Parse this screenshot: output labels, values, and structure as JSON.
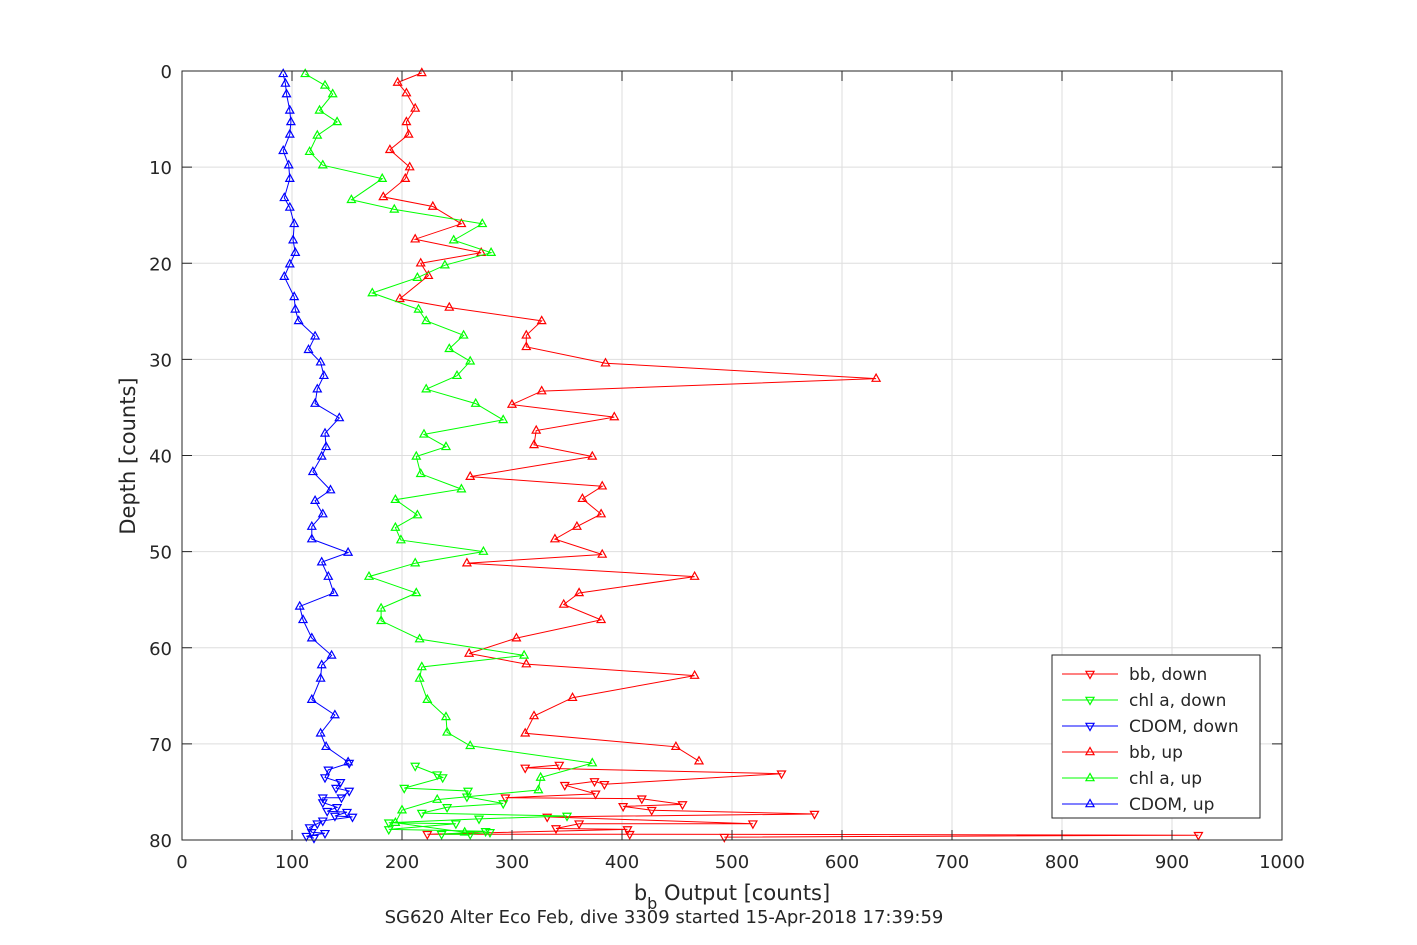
{
  "chart_data": {
    "type": "line",
    "xlabel": "b",
    "xlabel_sub": "b",
    "xlabel_rest": " Output [counts]",
    "ylabel": "Depth [counts]",
    "caption": "SG620 Alter Eco Feb, dive 3309 started 15-Apr-2018 17:39:59",
    "xlim": [
      0,
      1000
    ],
    "ylim": [
      0,
      80
    ],
    "y_reversed": true,
    "grid": true,
    "legend_position": "bottom-right",
    "x_ticks": [
      "0",
      "100",
      "200",
      "300",
      "400",
      "500",
      "600",
      "700",
      "800",
      "900",
      "1000"
    ],
    "y_ticks": [
      "0",
      "10",
      "20",
      "30",
      "40",
      "50",
      "60",
      "70",
      "80"
    ],
    "series": [
      {
        "name": "bb, down",
        "color": "#ff0000",
        "marker": "triangle-down",
        "points": [
          [
            343,
            72.2
          ],
          [
            312,
            72.5
          ],
          [
            545,
            73.1
          ],
          [
            384,
            74.2
          ],
          [
            375,
            73.9
          ],
          [
            348,
            74.3
          ],
          [
            376,
            75.2
          ],
          [
            294,
            75.6
          ],
          [
            418,
            75.7
          ],
          [
            455,
            76.3
          ],
          [
            401,
            76.5
          ],
          [
            427,
            76.9
          ],
          [
            575,
            77.3
          ],
          [
            332,
            77.6
          ],
          [
            519,
            78.3
          ],
          [
            361,
            78.3
          ],
          [
            340,
            78.8
          ],
          [
            405,
            78.9
          ],
          [
            223,
            79.4
          ],
          [
            407,
            79.4
          ],
          [
            924,
            79.5
          ],
          [
            493,
            79.7
          ]
        ]
      },
      {
        "name": "chl a, down",
        "color": "#00ff00",
        "marker": "triangle-down",
        "points": [
          [
            212,
            72.3
          ],
          [
            232,
            73.2
          ],
          [
            237,
            73.5
          ],
          [
            202,
            74.6
          ],
          [
            260,
            74.9
          ],
          [
            259,
            75.5
          ],
          [
            292,
            76.2
          ],
          [
            241,
            76.6
          ],
          [
            218,
            77.2
          ],
          [
            350,
            77.5
          ],
          [
            270,
            77.8
          ],
          [
            188,
            78.2
          ],
          [
            249,
            78.3
          ],
          [
            188,
            78.9
          ],
          [
            276,
            79.1
          ],
          [
            236,
            79.4
          ],
          [
            262,
            79.4
          ],
          [
            280,
            79.2
          ]
        ]
      },
      {
        "name": "CDOM, down",
        "color": "#0000ff",
        "marker": "triangle-down",
        "points": [
          [
            152,
            72.0
          ],
          [
            133,
            72.7
          ],
          [
            130,
            73.5
          ],
          [
            144,
            74.0
          ],
          [
            140,
            74.6
          ],
          [
            152,
            74.9
          ],
          [
            145,
            75.6
          ],
          [
            128,
            75.6
          ],
          [
            128,
            76.1
          ],
          [
            141,
            76.6
          ],
          [
            132,
            77.0
          ],
          [
            150,
            77.1
          ],
          [
            139,
            77.5
          ],
          [
            155,
            77.6
          ],
          [
            128,
            78.0
          ],
          [
            123,
            78.3
          ],
          [
            116,
            78.7
          ],
          [
            118,
            79.2
          ],
          [
            130,
            79.3
          ],
          [
            113,
            79.6
          ],
          [
            120,
            79.8
          ]
        ]
      },
      {
        "name": "bb, up",
        "color": "#ff0000",
        "marker": "triangle-up",
        "points": [
          [
            218,
            0.2
          ],
          [
            196,
            1.2
          ],
          [
            204,
            2.3
          ],
          [
            212,
            3.9
          ],
          [
            204,
            5.3
          ],
          [
            206,
            6.6
          ],
          [
            189,
            8.2
          ],
          [
            207,
            10.0
          ],
          [
            203,
            11.2
          ],
          [
            183,
            13.1
          ],
          [
            228,
            14.1
          ],
          [
            254,
            15.9
          ],
          [
            212,
            17.5
          ],
          [
            272,
            18.9
          ],
          [
            217,
            20.0
          ],
          [
            224,
            21.3
          ],
          [
            198,
            23.7
          ],
          [
            243,
            24.6
          ],
          [
            327,
            26.0
          ],
          [
            313,
            27.5
          ],
          [
            313,
            28.7
          ],
          [
            385,
            30.4
          ],
          [
            631,
            32.0
          ],
          [
            327,
            33.3
          ],
          [
            300,
            34.7
          ],
          [
            393,
            36.0
          ],
          [
            322,
            37.4
          ],
          [
            320,
            38.9
          ],
          [
            373,
            40.1
          ],
          [
            262,
            42.2
          ],
          [
            382,
            43.2
          ],
          [
            364,
            44.5
          ],
          [
            381,
            46.1
          ],
          [
            359,
            47.4
          ],
          [
            339,
            48.7
          ],
          [
            382,
            50.3
          ],
          [
            259,
            51.2
          ],
          [
            466,
            52.6
          ],
          [
            361,
            54.3
          ],
          [
            347,
            55.5
          ],
          [
            381,
            57.1
          ],
          [
            304,
            59.0
          ],
          [
            261,
            60.6
          ],
          [
            313,
            61.7
          ],
          [
            466,
            62.9
          ],
          [
            355,
            65.2
          ],
          [
            320,
            67.1
          ],
          [
            312,
            68.9
          ],
          [
            449,
            70.3
          ],
          [
            470,
            71.8
          ]
        ]
      },
      {
        "name": "chl a, up",
        "color": "#00ff00",
        "marker": "triangle-up",
        "points": [
          [
            112,
            0.3
          ],
          [
            130,
            1.5
          ],
          [
            137,
            2.4
          ],
          [
            125,
            4.1
          ],
          [
            141,
            5.3
          ],
          [
            123,
            6.7
          ],
          [
            116,
            8.4
          ],
          [
            128,
            9.8
          ],
          [
            182,
            11.2
          ],
          [
            154,
            13.4
          ],
          [
            193,
            14.4
          ],
          [
            273,
            15.9
          ],
          [
            247,
            17.6
          ],
          [
            281,
            18.9
          ],
          [
            239,
            20.2
          ],
          [
            214,
            21.5
          ],
          [
            173,
            23.1
          ],
          [
            215,
            24.8
          ],
          [
            222,
            26.0
          ],
          [
            256,
            27.5
          ],
          [
            243,
            28.9
          ],
          [
            262,
            30.2
          ],
          [
            250,
            31.7
          ],
          [
            222,
            33.1
          ],
          [
            267,
            34.6
          ],
          [
            292,
            36.3
          ],
          [
            220,
            37.8
          ],
          [
            240,
            39.1
          ],
          [
            213,
            40.1
          ],
          [
            217,
            41.9
          ],
          [
            254,
            43.5
          ],
          [
            194,
            44.6
          ],
          [
            214,
            46.2
          ],
          [
            194,
            47.5
          ],
          [
            199,
            48.8
          ],
          [
            274,
            50.0
          ],
          [
            212,
            51.2
          ],
          [
            170,
            52.6
          ],
          [
            213,
            54.3
          ],
          [
            181,
            55.9
          ],
          [
            181,
            57.2
          ],
          [
            216,
            59.1
          ],
          [
            311,
            60.8
          ],
          [
            218,
            62.0
          ],
          [
            216,
            63.2
          ],
          [
            223,
            65.4
          ],
          [
            240,
            67.2
          ],
          [
            241,
            68.8
          ],
          [
            262,
            70.2
          ],
          [
            373,
            72.0
          ],
          [
            326,
            73.5
          ],
          [
            324,
            74.8
          ],
          [
            232,
            75.8
          ],
          [
            200,
            76.9
          ],
          [
            194,
            78.2
          ],
          [
            257,
            79.2
          ]
        ]
      },
      {
        "name": "CDOM, up",
        "color": "#0000ff",
        "marker": "triangle-up",
        "points": [
          [
            92,
            0.3
          ],
          [
            94,
            1.3
          ],
          [
            95,
            2.4
          ],
          [
            98,
            4.1
          ],
          [
            99,
            5.3
          ],
          [
            98,
            6.6
          ],
          [
            92,
            8.3
          ],
          [
            97,
            9.8
          ],
          [
            98,
            11.2
          ],
          [
            93,
            13.2
          ],
          [
            98,
            14.2
          ],
          [
            102,
            15.9
          ],
          [
            101,
            17.6
          ],
          [
            103,
            18.9
          ],
          [
            98,
            20.1
          ],
          [
            93,
            21.4
          ],
          [
            102,
            23.5
          ],
          [
            103,
            24.8
          ],
          [
            106,
            26.0
          ],
          [
            121,
            27.6
          ],
          [
            115,
            29.0
          ],
          [
            126,
            30.3
          ],
          [
            129,
            31.7
          ],
          [
            123,
            33.1
          ],
          [
            121,
            34.6
          ],
          [
            143,
            36.1
          ],
          [
            130,
            37.7
          ],
          [
            131,
            39.1
          ],
          [
            127,
            40.1
          ],
          [
            119,
            41.7
          ],
          [
            135,
            43.6
          ],
          [
            121,
            44.7
          ],
          [
            128,
            46.1
          ],
          [
            118,
            47.4
          ],
          [
            118,
            48.7
          ],
          [
            151,
            50.1
          ],
          [
            127,
            51.1
          ],
          [
            133,
            52.6
          ],
          [
            138,
            54.3
          ],
          [
            107,
            55.7
          ],
          [
            110,
            57.1
          ],
          [
            118,
            59.0
          ],
          [
            136,
            60.8
          ],
          [
            127,
            61.8
          ],
          [
            126,
            63.2
          ],
          [
            118,
            65.4
          ],
          [
            139,
            67.0
          ],
          [
            126,
            68.9
          ],
          [
            131,
            70.3
          ],
          [
            151,
            71.9
          ]
        ]
      }
    ]
  }
}
